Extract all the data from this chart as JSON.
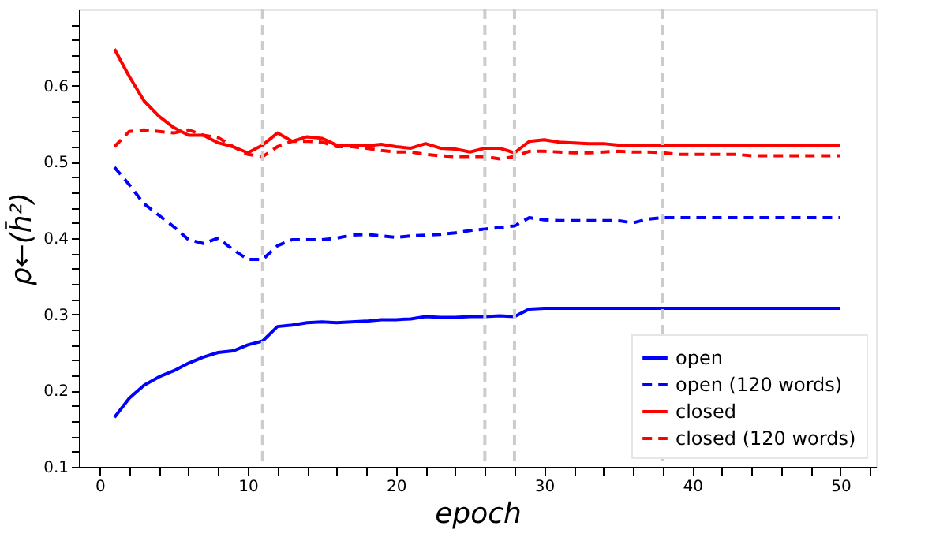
{
  "chart_data": {
    "type": "line",
    "xlabel": "epoch",
    "ylabel": "ρ←(h̄²)",
    "xlim": [
      -1.4,
      52.4
    ],
    "ylim": [
      0.1,
      0.7
    ],
    "xticks": [
      0,
      {
        "value": 2,
        "label": null
      },
      {
        "value": 4,
        "label": null
      },
      {
        "value": 6,
        "label": null
      },
      {
        "value": 8,
        "label": null
      },
      10,
      {
        "value": 12,
        "label": null
      },
      {
        "value": 14,
        "label": null
      },
      {
        "value": 16,
        "label": null
      },
      {
        "value": 18,
        "label": null
      },
      20,
      {
        "value": 22,
        "label": null
      },
      {
        "value": 24,
        "label": null
      },
      {
        "value": 26,
        "label": null
      },
      {
        "value": 28,
        "label": null
      },
      30,
      {
        "value": 32,
        "label": null
      },
      {
        "value": 34,
        "label": null
      },
      {
        "value": 36,
        "label": null
      },
      {
        "value": 38,
        "label": null
      },
      40,
      {
        "value": 42,
        "label": null
      },
      {
        "value": 44,
        "label": null
      },
      {
        "value": 46,
        "label": null
      },
      {
        "value": 48,
        "label": null
      },
      50,
      {
        "value": 52,
        "label": null
      }
    ],
    "yticks": [
      0.1,
      {
        "value": 0.12,
        "label": null
      },
      {
        "value": 0.14,
        "label": null
      },
      {
        "value": 0.16,
        "label": null
      },
      {
        "value": 0.18,
        "label": null
      },
      0.2,
      {
        "value": 0.22,
        "label": null
      },
      {
        "value": 0.24,
        "label": null
      },
      {
        "value": 0.26,
        "label": null
      },
      {
        "value": 0.28,
        "label": null
      },
      0.3,
      {
        "value": 0.32,
        "label": null
      },
      {
        "value": 0.34,
        "label": null
      },
      {
        "value": 0.36,
        "label": null
      },
      {
        "value": 0.38,
        "label": null
      },
      0.4,
      {
        "value": 0.42,
        "label": null
      },
      {
        "value": 0.44,
        "label": null
      },
      {
        "value": 0.46,
        "label": null
      },
      {
        "value": 0.48,
        "label": null
      },
      0.5,
      {
        "value": 0.52,
        "label": null
      },
      {
        "value": 0.54,
        "label": null
      },
      {
        "value": 0.56,
        "label": null
      },
      {
        "value": 0.58,
        "label": null
      },
      0.6,
      {
        "value": 0.62,
        "label": null
      },
      {
        "value": 0.64,
        "label": null
      },
      {
        "value": 0.66,
        "label": null
      },
      {
        "value": 0.68,
        "label": null
      }
    ],
    "x": [
      1,
      2,
      3,
      4,
      5,
      6,
      7,
      8,
      9,
      10,
      11,
      12,
      13,
      14,
      15,
      16,
      17,
      18,
      19,
      20,
      21,
      22,
      23,
      24,
      25,
      26,
      27,
      28,
      29,
      30,
      31,
      32,
      33,
      34,
      35,
      36,
      37,
      38,
      39,
      40,
      41,
      42,
      43,
      44,
      45,
      46,
      47,
      48,
      49,
      50
    ],
    "grid": false,
    "legend": "bottom right",
    "marker": "none",
    "series": [
      {
        "name": "open",
        "color": "#0000ff",
        "line_style": "solid",
        "values": [
          0.165,
          0.19,
          0.207,
          0.218,
          0.226,
          0.236,
          0.244,
          0.25,
          0.252,
          0.26,
          0.265,
          0.284,
          0.286,
          0.289,
          0.29,
          0.289,
          0.29,
          0.291,
          0.293,
          0.293,
          0.294,
          0.297,
          0.296,
          0.296,
          0.297,
          0.297,
          0.298,
          0.297,
          0.307,
          0.308,
          0.308,
          0.308,
          0.308,
          0.308,
          0.308,
          0.308,
          0.308,
          0.308,
          0.308,
          0.308,
          0.308,
          0.308,
          0.308,
          0.308,
          0.308,
          0.308,
          0.308,
          0.308,
          0.308,
          0.308
        ]
      },
      {
        "name": "open (120 words)",
        "color": "#0000ff",
        "line_style": "dashed",
        "values": [
          0.493,
          0.47,
          0.445,
          0.43,
          0.415,
          0.398,
          0.393,
          0.4,
          0.385,
          0.372,
          0.372,
          0.39,
          0.398,
          0.398,
          0.398,
          0.4,
          0.404,
          0.405,
          0.403,
          0.401,
          0.403,
          0.404,
          0.405,
          0.407,
          0.41,
          0.412,
          0.414,
          0.416,
          0.427,
          0.424,
          0.423,
          0.423,
          0.423,
          0.423,
          0.423,
          0.42,
          0.425,
          0.427,
          0.427,
          0.427,
          0.427,
          0.427,
          0.427,
          0.427,
          0.427,
          0.427,
          0.427,
          0.427,
          0.427,
          0.427
        ]
      },
      {
        "name": "closed",
        "color": "#ff0000",
        "line_style": "solid",
        "values": [
          0.648,
          0.612,
          0.58,
          0.56,
          0.545,
          0.535,
          0.535,
          0.525,
          0.52,
          0.512,
          0.522,
          0.538,
          0.527,
          0.533,
          0.531,
          0.522,
          0.521,
          0.521,
          0.523,
          0.52,
          0.518,
          0.524,
          0.518,
          0.517,
          0.513,
          0.518,
          0.518,
          0.512,
          0.527,
          0.529,
          0.526,
          0.525,
          0.524,
          0.524,
          0.522,
          0.522,
          0.522,
          0.522,
          0.522,
          0.522,
          0.522,
          0.522,
          0.522,
          0.522,
          0.522,
          0.522,
          0.522,
          0.522,
          0.522,
          0.522
        ]
      },
      {
        "name": "closed (120 words)",
        "color": "#ff0000",
        "line_style": "dashed",
        "values": [
          0.52,
          0.54,
          0.542,
          0.54,
          0.538,
          0.542,
          0.535,
          0.532,
          0.52,
          0.51,
          0.507,
          0.52,
          0.527,
          0.527,
          0.526,
          0.52,
          0.52,
          0.518,
          0.515,
          0.513,
          0.513,
          0.51,
          0.508,
          0.507,
          0.507,
          0.507,
          0.504,
          0.507,
          0.514,
          0.514,
          0.513,
          0.512,
          0.512,
          0.513,
          0.514,
          0.513,
          0.513,
          0.512,
          0.51,
          0.51,
          0.51,
          0.51,
          0.51,
          0.508,
          0.508,
          0.508,
          0.508,
          0.508,
          0.508,
          0.508
        ]
      }
    ],
    "ref_lines": [
      {
        "axis": "x",
        "value": 11,
        "color": "#cccccc",
        "line_style": "dashed"
      },
      {
        "axis": "x",
        "value": 26,
        "color": "#cccccc",
        "line_style": "dashed"
      },
      {
        "axis": "x",
        "value": 28,
        "color": "#cccccc",
        "line_style": "dashed"
      },
      {
        "axis": "x",
        "value": 38,
        "color": "#cccccc",
        "line_style": "dashed"
      }
    ]
  }
}
